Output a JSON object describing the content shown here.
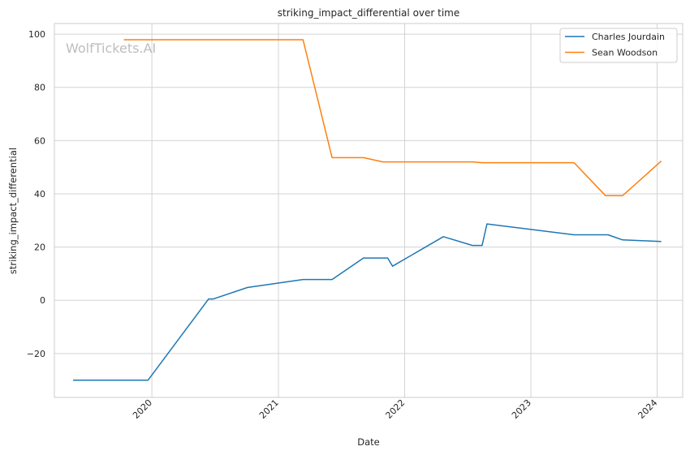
{
  "chart_data": {
    "type": "line",
    "title": "striking_impact_differential over time",
    "xlabel": "Date",
    "ylabel": "striking_impact_differential",
    "watermark": "WolfTickets.AI",
    "x_type": "date",
    "xlim": [
      "2019-03-25",
      "2024-03-15"
    ],
    "ylim": [
      -36.5,
      104
    ],
    "xticks": [
      {
        "date": "2020-01-01",
        "label": "2020"
      },
      {
        "date": "2021-01-01",
        "label": "2021"
      },
      {
        "date": "2022-01-01",
        "label": "2022"
      },
      {
        "date": "2023-01-01",
        "label": "2023"
      },
      {
        "date": "2024-01-01",
        "label": "2024"
      }
    ],
    "yticks": [
      -20,
      0,
      20,
      40,
      60,
      80,
      100
    ],
    "ytick_labels": [
      "−20",
      "0",
      "20",
      "40",
      "60",
      "80",
      "100"
    ],
    "grid": true,
    "legend_position": "top-right",
    "series": [
      {
        "name": "Charles Jourdain",
        "color": "#1f77b4",
        "points": [
          {
            "x": "2019-05-18",
            "y": -30
          },
          {
            "x": "2019-12-21",
            "y": -30
          },
          {
            "x": "2020-06-13",
            "y": 0.5
          },
          {
            "x": "2020-06-27",
            "y": 0.5
          },
          {
            "x": "2020-10-03",
            "y": 4.8
          },
          {
            "x": "2021-03-13",
            "y": 7.8
          },
          {
            "x": "2021-06-05",
            "y": 7.8
          },
          {
            "x": "2021-09-04",
            "y": 15.9
          },
          {
            "x": "2021-11-13",
            "y": 15.9
          },
          {
            "x": "2021-11-27",
            "y": 12.8
          },
          {
            "x": "2022-04-23",
            "y": 23.9
          },
          {
            "x": "2022-07-16",
            "y": 20.6
          },
          {
            "x": "2022-08-13",
            "y": 20.6
          },
          {
            "x": "2022-08-27",
            "y": 28.7
          },
          {
            "x": "2023-05-06",
            "y": 24.6
          },
          {
            "x": "2023-08-12",
            "y": 24.6
          },
          {
            "x": "2023-09-23",
            "y": 22.7
          },
          {
            "x": "2024-01-13",
            "y": 22.1
          }
        ]
      },
      {
        "name": "Sean Woodson",
        "color": "#ff7f0e",
        "points": [
          {
            "x": "2019-10-12",
            "y": 97.9
          },
          {
            "x": "2021-03-13",
            "y": 97.9
          },
          {
            "x": "2021-06-05",
            "y": 53.6
          },
          {
            "x": "2021-09-04",
            "y": 53.6
          },
          {
            "x": "2021-10-30",
            "y": 52.0
          },
          {
            "x": "2022-07-16",
            "y": 52.0
          },
          {
            "x": "2022-08-13",
            "y": 51.7
          },
          {
            "x": "2023-05-06",
            "y": 51.7
          },
          {
            "x": "2023-08-05",
            "y": 39.3
          },
          {
            "x": "2023-09-23",
            "y": 39.3
          },
          {
            "x": "2024-01-13",
            "y": 52.3
          }
        ]
      }
    ]
  }
}
